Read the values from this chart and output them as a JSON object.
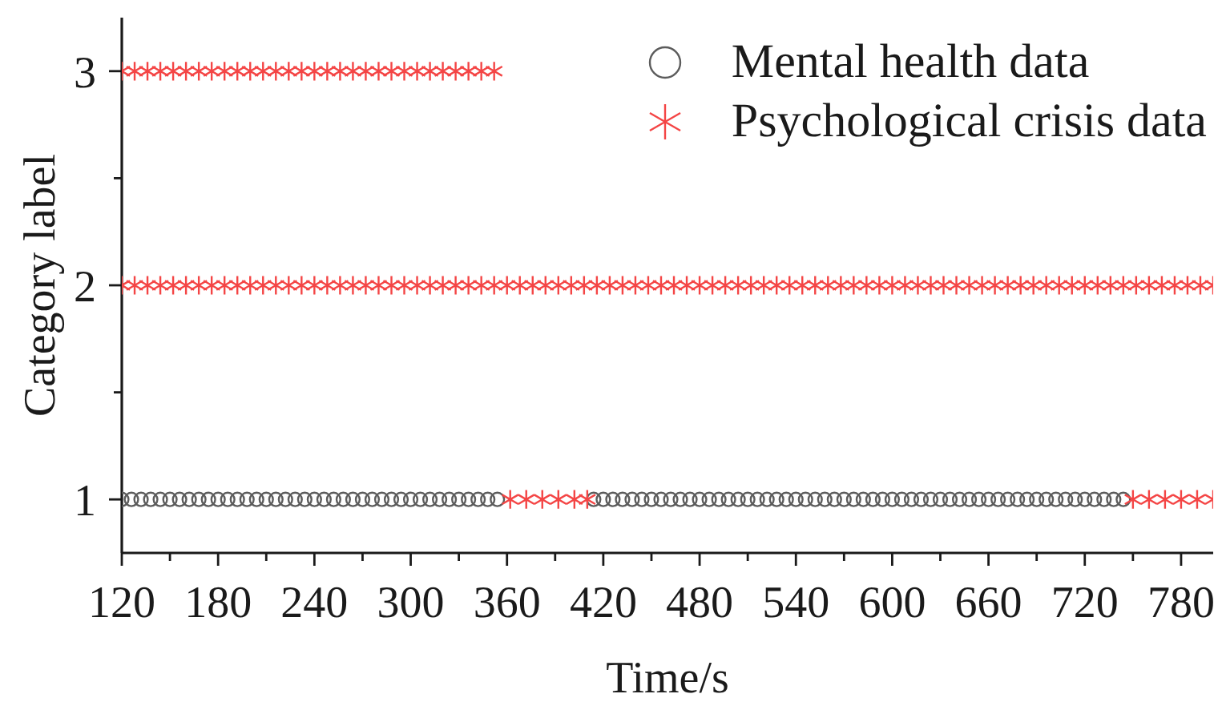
{
  "chart_data": {
    "type": "scatter",
    "xlabel": "Time/s",
    "ylabel": "Category label",
    "xlim": [
      120,
      800
    ],
    "ylim": [
      0.75,
      3.25
    ],
    "xticks": [
      120,
      {
        "value": 150,
        "label": null
      },
      180,
      {
        "value": 210,
        "label": null
      },
      240,
      {
        "value": 270,
        "label": null
      },
      300,
      {
        "value": 330,
        "label": null
      },
      360,
      {
        "value": 390,
        "label": null
      },
      420,
      {
        "value": 450,
        "label": null
      },
      480,
      {
        "value": 510,
        "label": null
      },
      540,
      {
        "value": 570,
        "label": null
      },
      600,
      {
        "value": 630,
        "label": null
      },
      660,
      {
        "value": 690,
        "label": null
      },
      720,
      {
        "value": 750,
        "label": null
      },
      780
    ],
    "yticks": [
      1,
      {
        "value": 1.5,
        "label": null
      },
      2,
      {
        "value": 2.5,
        "label": null
      },
      3
    ],
    "legend": "top right",
    "series": [
      {
        "name": "Mental health data",
        "color": "#5c5c5c",
        "marker": "circle",
        "x": [
          120,
          126,
          132,
          138,
          144,
          150,
          156,
          162,
          168,
          174,
          180,
          186,
          192,
          198,
          204,
          210,
          216,
          222,
          228,
          234,
          240,
          246,
          252,
          258,
          264,
          270,
          276,
          282,
          288,
          294,
          300,
          306,
          312,
          318,
          324,
          330,
          336,
          342,
          348,
          354,
          414,
          420,
          426,
          432,
          438,
          444,
          450,
          456,
          462,
          468,
          474,
          480,
          486,
          492,
          498,
          504,
          510,
          516,
          522,
          528,
          534,
          540,
          546,
          552,
          558,
          564,
          570,
          576,
          582,
          588,
          594,
          600,
          606,
          612,
          618,
          624,
          630,
          636,
          642,
          648,
          654,
          660,
          666,
          672,
          678,
          684,
          690,
          696,
          702,
          708,
          714,
          720,
          726,
          732,
          738,
          744
        ],
        "values": [
          1,
          1,
          1,
          1,
          1,
          1,
          1,
          1,
          1,
          1,
          1,
          1,
          1,
          1,
          1,
          1,
          1,
          1,
          1,
          1,
          1,
          1,
          1,
          1,
          1,
          1,
          1,
          1,
          1,
          1,
          1,
          1,
          1,
          1,
          1,
          1,
          1,
          1,
          1,
          1,
          1,
          1,
          1,
          1,
          1,
          1,
          1,
          1,
          1,
          1,
          1,
          1,
          1,
          1,
          1,
          1,
          1,
          1,
          1,
          1,
          1,
          1,
          1,
          1,
          1,
          1,
          1,
          1,
          1,
          1,
          1,
          1,
          1,
          1,
          1,
          1,
          1,
          1,
          1,
          1,
          1,
          1,
          1,
          1,
          1,
          1,
          1,
          1,
          1,
          1,
          1,
          1,
          1,
          1,
          1,
          1
        ]
      },
      {
        "name": "Psychological crisis data",
        "color": "#f44545",
        "marker": "cross",
        "x": [
          120,
          128,
          136,
          144,
          152,
          160,
          168,
          176,
          184,
          192,
          200,
          208,
          216,
          224,
          232,
          240,
          248,
          256,
          264,
          272,
          280,
          288,
          296,
          304,
          312,
          320,
          328,
          336,
          344,
          352,
          120,
          128,
          136,
          144,
          152,
          160,
          168,
          176,
          184,
          192,
          200,
          208,
          216,
          224,
          232,
          240,
          248,
          256,
          264,
          272,
          280,
          288,
          296,
          304,
          312,
          320,
          328,
          336,
          344,
          352,
          360,
          368,
          376,
          384,
          392,
          400,
          408,
          416,
          424,
          432,
          440,
          448,
          456,
          464,
          472,
          480,
          488,
          496,
          504,
          512,
          520,
          528,
          536,
          544,
          552,
          560,
          568,
          576,
          584,
          592,
          600,
          608,
          616,
          624,
          632,
          640,
          648,
          656,
          664,
          672,
          680,
          688,
          696,
          704,
          712,
          720,
          728,
          736,
          744,
          752,
          760,
          768,
          776,
          784,
          792,
          800,
          362,
          372,
          382,
          392,
          402,
          410,
          750,
          760,
          770,
          780,
          790,
          800
        ],
        "values": [
          3,
          3,
          3,
          3,
          3,
          3,
          3,
          3,
          3,
          3,
          3,
          3,
          3,
          3,
          3,
          3,
          3,
          3,
          3,
          3,
          3,
          3,
          3,
          3,
          3,
          3,
          3,
          3,
          3,
          3,
          2,
          2,
          2,
          2,
          2,
          2,
          2,
          2,
          2,
          2,
          2,
          2,
          2,
          2,
          2,
          2,
          2,
          2,
          2,
          2,
          2,
          2,
          2,
          2,
          2,
          2,
          2,
          2,
          2,
          2,
          2,
          2,
          2,
          2,
          2,
          2,
          2,
          2,
          2,
          2,
          2,
          2,
          2,
          2,
          2,
          2,
          2,
          2,
          2,
          2,
          2,
          2,
          2,
          2,
          2,
          2,
          2,
          2,
          2,
          2,
          2,
          2,
          2,
          2,
          2,
          2,
          2,
          2,
          2,
          2,
          2,
          2,
          2,
          2,
          2,
          2,
          2,
          2,
          2,
          2,
          2,
          2,
          2,
          2,
          2,
          2,
          1,
          1,
          1,
          1,
          1,
          1,
          1,
          1,
          1,
          1,
          1,
          1
        ]
      }
    ]
  }
}
